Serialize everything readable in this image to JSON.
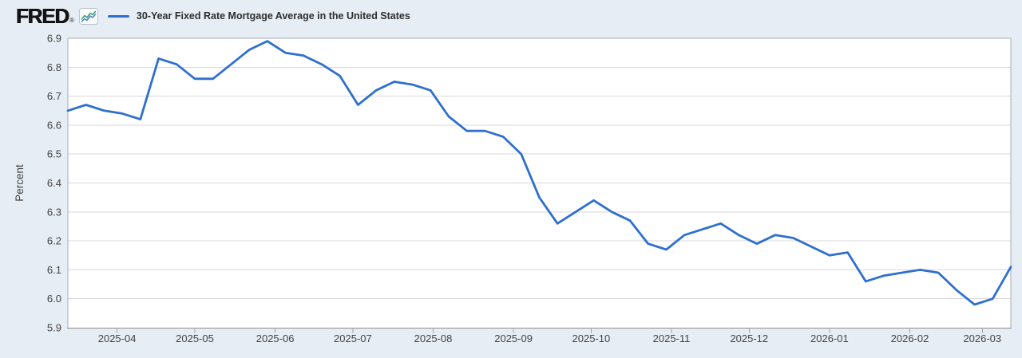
{
  "header": {
    "logo_text": "FRED",
    "registered_mark": "®",
    "series_label": "30-Year Fixed Rate Mortgage Average in the United States"
  },
  "colors": {
    "background": "#e6edf4",
    "plot_background": "#ffffff",
    "line": "#2e6fd0",
    "gridline": "#d9d9d9",
    "plot_border": "#a6aeb5",
    "axis_line": "#8c8c8c",
    "tick_mark": "#9aa2a9",
    "tick_label": "#434343",
    "title_text": "#2d2d2d",
    "icon_border": "#b9c5cf",
    "icon_line_green": "#35a06b",
    "icon_line_blue": "#4a7fd4"
  },
  "chart_data": {
    "type": "line",
    "title": "30-Year Fixed Rate Mortgage Average in the United States",
    "ylabel": "Percent",
    "xlabel": "",
    "ylim": [
      5.9,
      6.9
    ],
    "yticks": [
      "5.9",
      "6.0",
      "6.1",
      "6.2",
      "6.3",
      "6.4",
      "6.5",
      "6.6",
      "6.7",
      "6.8",
      "6.9"
    ],
    "xticks": [
      "2025-04",
      "2025-05",
      "2025-06",
      "2025-07",
      "2025-08",
      "2025-09",
      "2025-10",
      "2025-11",
      "2025-12",
      "2026-01",
      "2026-02",
      "2026-03"
    ],
    "grid": "horizontal",
    "legend_position": "top-left",
    "x": [
      "2025-03-13",
      "2025-03-20",
      "2025-03-27",
      "2025-04-03",
      "2025-04-10",
      "2025-04-17",
      "2025-04-24",
      "2025-05-01",
      "2025-05-08",
      "2025-05-15",
      "2025-05-22",
      "2025-05-29",
      "2025-06-05",
      "2025-06-12",
      "2025-06-19",
      "2025-06-26",
      "2025-07-03",
      "2025-07-10",
      "2025-07-17",
      "2025-07-24",
      "2025-07-31",
      "2025-08-07",
      "2025-08-14",
      "2025-08-21",
      "2025-08-28",
      "2025-09-04",
      "2025-09-11",
      "2025-09-18",
      "2025-09-25",
      "2025-10-02",
      "2025-10-09",
      "2025-10-16",
      "2025-10-23",
      "2025-10-30",
      "2025-11-06",
      "2025-11-13",
      "2025-11-20",
      "2025-11-27",
      "2025-12-04",
      "2025-12-11",
      "2025-12-18",
      "2025-12-25",
      "2026-01-01",
      "2026-01-08",
      "2026-01-15",
      "2026-01-22",
      "2026-01-29",
      "2026-02-05",
      "2026-02-12",
      "2026-02-19",
      "2026-02-26",
      "2026-03-05",
      "2026-03-12"
    ],
    "values": [
      6.65,
      6.67,
      6.65,
      6.64,
      6.62,
      6.83,
      6.81,
      6.76,
      6.76,
      6.81,
      6.86,
      6.89,
      6.85,
      6.84,
      6.81,
      6.77,
      6.67,
      6.72,
      6.75,
      6.74,
      6.72,
      6.63,
      6.58,
      6.58,
      6.56,
      6.5,
      6.35,
      6.26,
      6.3,
      6.34,
      6.3,
      6.27,
      6.19,
      6.17,
      6.22,
      6.24,
      6.26,
      6.22,
      6.19,
      6.22,
      6.21,
      6.18,
      6.15,
      6.16,
      6.06,
      6.08,
      6.09,
      6.1,
      6.09,
      6.03,
      5.98,
      6.0,
      6.11
    ]
  }
}
